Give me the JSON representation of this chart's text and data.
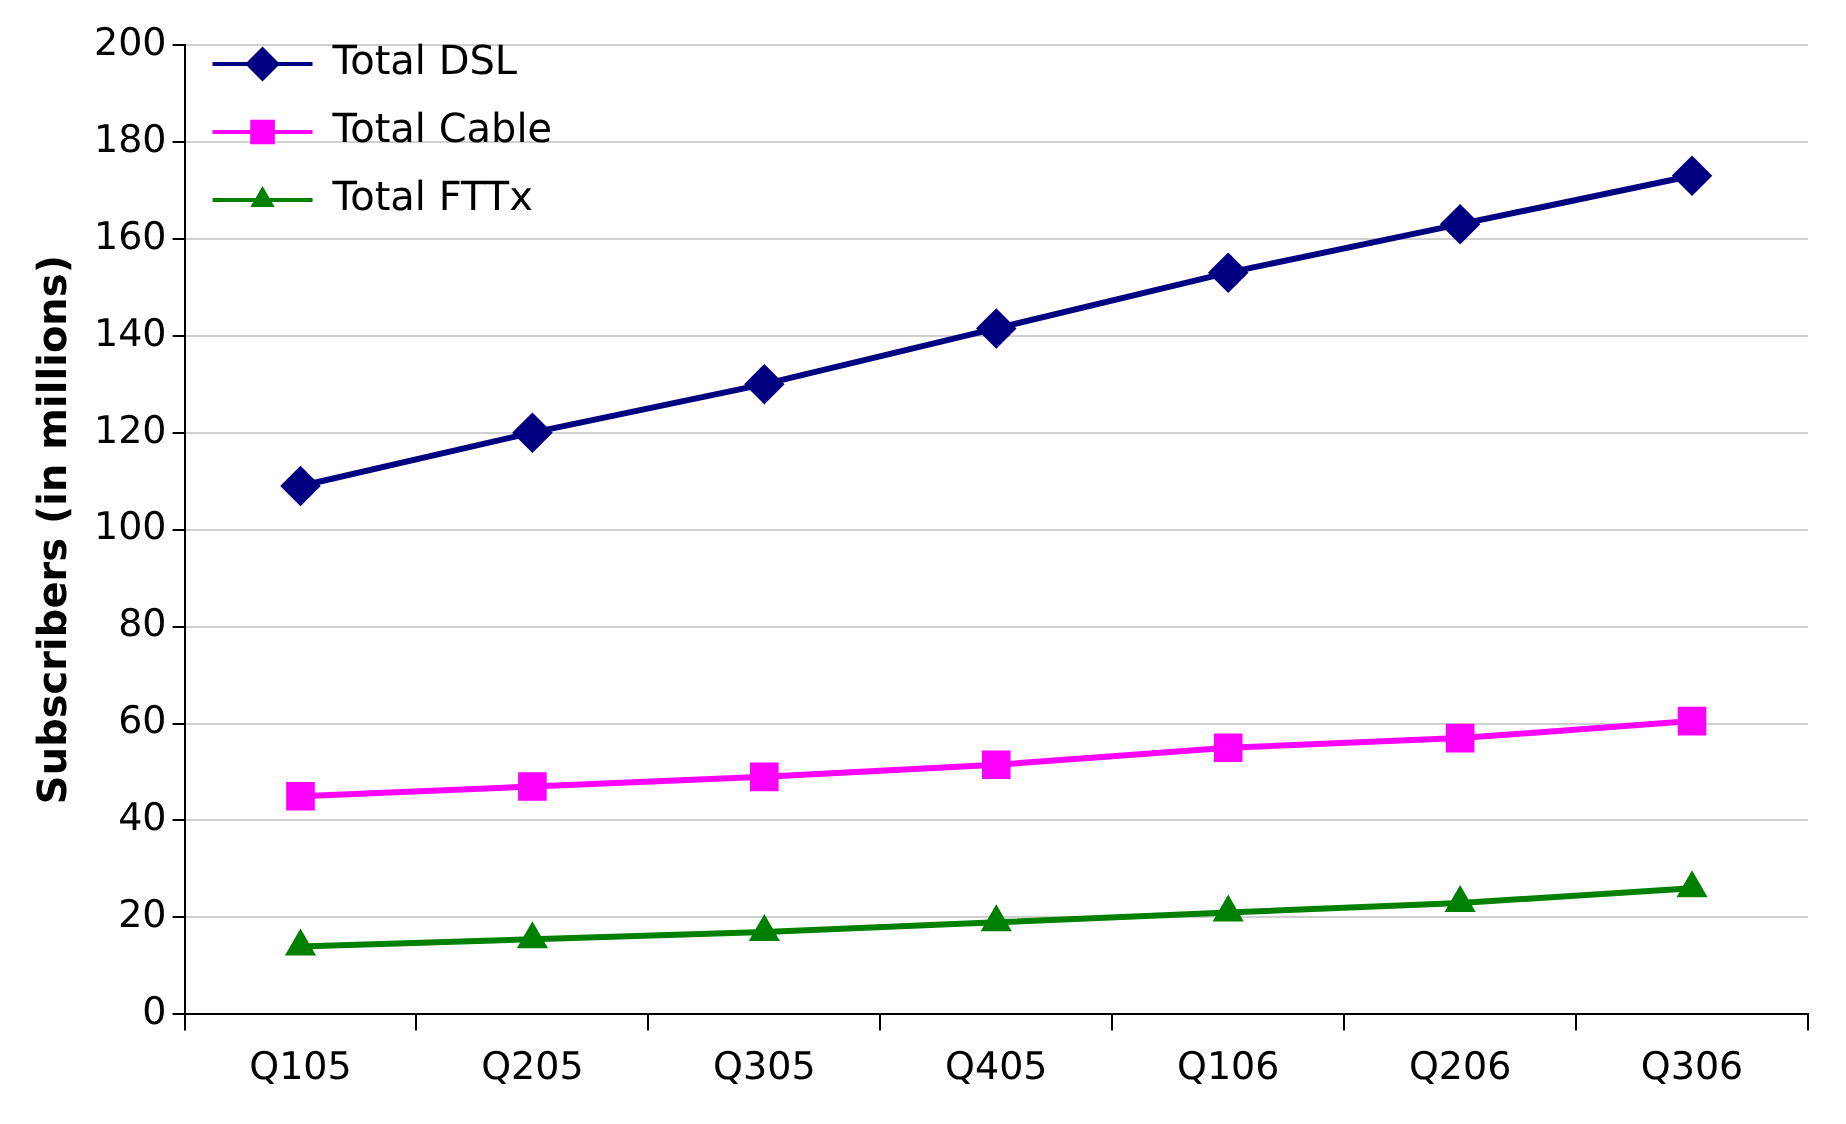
{
  "chart_data": {
    "type": "line",
    "ylabel": "Subscribers (in millions)",
    "categories": [
      "Q105",
      "Q205",
      "Q305",
      "Q405",
      "Q106",
      "Q206",
      "Q306"
    ],
    "series": [
      {
        "name": "Total DSL",
        "color": "#000080",
        "marker": "diamond",
        "values": [
          109,
          120,
          130,
          141.5,
          153,
          163,
          173
        ]
      },
      {
        "name": "Total Cable",
        "color": "#ff00ff",
        "marker": "square",
        "values": [
          45,
          47,
          49,
          51.5,
          55,
          57,
          60.5
        ]
      },
      {
        "name": "Total FTTx",
        "color": "#008000",
        "marker": "triangle",
        "values": [
          14,
          15.5,
          17,
          19,
          21,
          23,
          26
        ]
      }
    ],
    "ylim": [
      0,
      200
    ],
    "yticks": [
      0,
      20,
      40,
      60,
      80,
      100,
      120,
      140,
      160,
      180,
      200
    ],
    "grid": "y",
    "legend": "top left"
  }
}
